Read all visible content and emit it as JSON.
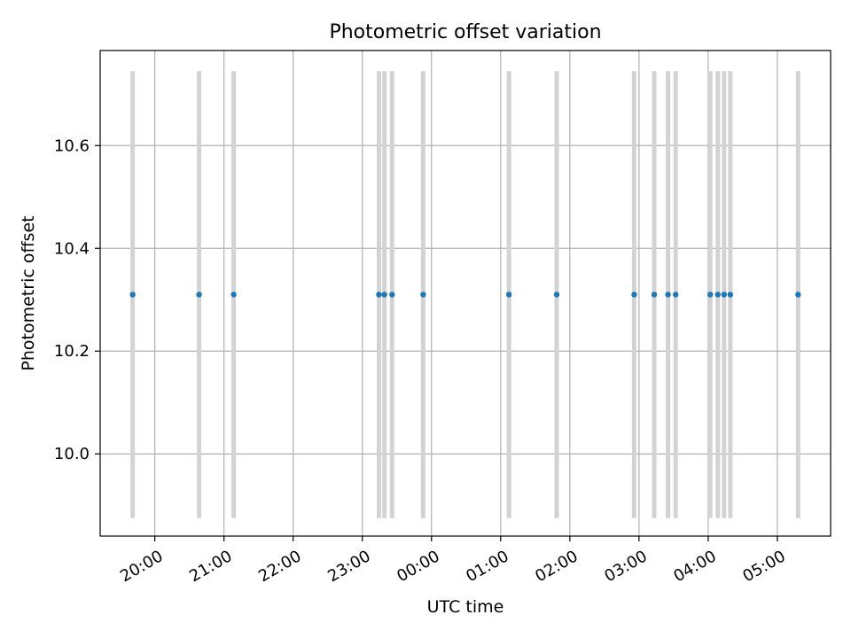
{
  "chart_data": {
    "type": "scatter",
    "title": "Photometric offset variation",
    "xlabel": "UTC time",
    "ylabel": "Photometric offset",
    "x_ticks": [
      "20:00",
      "21:00",
      "22:00",
      "23:00",
      "00:00",
      "01:00",
      "02:00",
      "03:00",
      "04:00",
      "05:00"
    ],
    "x_tick_hours": [
      20,
      21,
      22,
      23,
      24,
      25,
      26,
      27,
      28,
      29
    ],
    "y_ticks": [
      "10.0",
      "10.2",
      "10.4",
      "10.6"
    ],
    "y_tick_values": [
      10.0,
      10.2,
      10.4,
      10.6
    ],
    "xlim_hours": [
      19.21,
      29.77
    ],
    "ylim": [
      9.84,
      10.785
    ],
    "grid": true,
    "point_color": "#1f77b4",
    "errorbar_color": "#d3d3d3",
    "series": [
      {
        "x_hours": [
          19.68,
          20.64,
          21.14,
          23.24,
          23.32,
          23.43,
          23.88,
          25.12,
          25.81,
          26.93,
          27.22,
          27.42,
          27.53,
          28.03,
          28.14,
          28.23,
          28.32,
          29.3
        ],
        "y": [
          10.31,
          10.31,
          10.31,
          10.31,
          10.31,
          10.31,
          10.31,
          10.31,
          10.31,
          10.31,
          10.31,
          10.31,
          10.31,
          10.31,
          10.31,
          10.31,
          10.31,
          10.31
        ],
        "yerr": [
          0.435,
          0.435,
          0.435,
          0.435,
          0.435,
          0.435,
          0.435,
          0.435,
          0.435,
          0.435,
          0.435,
          0.435,
          0.435,
          0.435,
          0.435,
          0.435,
          0.435,
          0.435
        ]
      }
    ]
  }
}
